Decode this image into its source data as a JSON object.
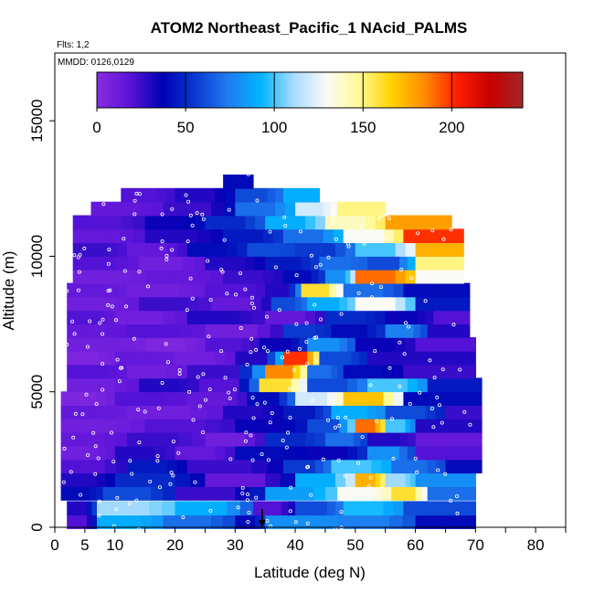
{
  "chart_data": {
    "type": "heatmap",
    "title": "ATOM2 Northeast_Pacific_1 NAcid_PALMS",
    "subtitle_flights": "Flts: 1,2",
    "subtitle_dates": "MMDD: 0126,0129",
    "xlabel": "Latitude (deg N)",
    "ylabel": "Altitude (m)",
    "xlim": [
      0,
      85
    ],
    "ylim": [
      0,
      17500
    ],
    "x_tick_labels": [
      "0",
      "5",
      "10",
      "20",
      "30",
      "40",
      "50",
      "60",
      "70",
      "80"
    ],
    "x_tick_values": [
      0,
      5,
      10,
      20,
      30,
      40,
      50,
      60,
      70,
      80
    ],
    "x_minor_ticks": [
      15,
      25,
      35,
      45,
      55,
      65,
      75,
      85
    ],
    "y_tick_labels": [
      "0",
      "5000",
      "10000",
      "15000"
    ],
    "y_tick_values": [
      0,
      5000,
      10000,
      15000
    ],
    "colorbar": {
      "min": 0,
      "max": 240,
      "tick_labels": [
        "0",
        "50",
        "100",
        "150",
        "200"
      ],
      "tick_values": [
        0,
        50,
        100,
        150,
        200
      ],
      "colors": [
        "#8a2be2",
        "#5a14d8",
        "#0000b4",
        "#0a3ad0",
        "#1e7cf0",
        "#00b4ff",
        "#a8dcff",
        "#fafafa",
        "#fffa96",
        "#ffd200",
        "#ff8c00",
        "#ff1e00",
        "#c80000",
        "#a02828"
      ]
    },
    "altitude_bands": [
      {
        "alt": 200,
        "lat": [
          2,
          70
        ],
        "segments": [
          [
            2,
            7,
            20
          ],
          [
            7,
            18,
            90
          ],
          [
            18,
            30,
            70
          ],
          [
            30,
            35,
            40
          ],
          [
            35,
            47,
            80
          ],
          [
            47,
            60,
            75
          ],
          [
            60,
            70,
            40
          ]
        ]
      },
      {
        "alt": 700,
        "lat": [
          2,
          70
        ],
        "segments": [
          [
            2,
            7,
            30
          ],
          [
            7,
            20,
            110
          ],
          [
            20,
            33,
            90
          ],
          [
            33,
            40,
            20
          ],
          [
            40,
            48,
            60
          ],
          [
            48,
            58,
            95
          ],
          [
            58,
            70,
            60
          ]
        ]
      },
      {
        "alt": 1250,
        "lat": [
          1,
          70
        ],
        "segments": [
          [
            1,
            8,
            40
          ],
          [
            8,
            20,
            60
          ],
          [
            20,
            35,
            25
          ],
          [
            35,
            47,
            85
          ],
          [
            47,
            56,
            130
          ],
          [
            56,
            62,
            160
          ],
          [
            62,
            70,
            70
          ]
        ]
      },
      {
        "alt": 1750,
        "lat": [
          1,
          70
        ],
        "segments": [
          [
            1,
            10,
            30
          ],
          [
            10,
            25,
            50
          ],
          [
            25,
            40,
            15
          ],
          [
            40,
            50,
            90
          ],
          [
            50,
            55,
            175
          ],
          [
            55,
            60,
            110
          ],
          [
            60,
            70,
            80
          ]
        ]
      },
      {
        "alt": 2250,
        "lat": [
          1,
          71
        ],
        "segments": [
          [
            1,
            12,
            20
          ],
          [
            12,
            22,
            45
          ],
          [
            22,
            38,
            25
          ],
          [
            38,
            46,
            55
          ],
          [
            46,
            56,
            100
          ],
          [
            56,
            65,
            70
          ],
          [
            65,
            71,
            40
          ]
        ]
      },
      {
        "alt": 2750,
        "lat": [
          1,
          71
        ],
        "segments": [
          [
            1,
            10,
            10
          ],
          [
            10,
            20,
            30
          ],
          [
            20,
            30,
            15
          ],
          [
            30,
            42,
            40
          ],
          [
            42,
            52,
            35
          ],
          [
            52,
            60,
            80
          ],
          [
            60,
            71,
            20
          ]
        ]
      },
      {
        "alt": 3250,
        "lat": [
          1,
          71
        ],
        "segments": [
          [
            1,
            12,
            15
          ],
          [
            12,
            25,
            25
          ],
          [
            25,
            35,
            10
          ],
          [
            35,
            45,
            50
          ],
          [
            45,
            52,
            70
          ],
          [
            52,
            60,
            30
          ],
          [
            60,
            71,
            15
          ]
        ]
      },
      {
        "alt": 3750,
        "lat": [
          1,
          71
        ],
        "segments": [
          [
            1,
            15,
            10
          ],
          [
            15,
            30,
            20
          ],
          [
            30,
            42,
            35
          ],
          [
            42,
            50,
            60
          ],
          [
            50,
            55,
            190
          ],
          [
            55,
            60,
            100
          ],
          [
            60,
            71,
            30
          ]
        ]
      },
      {
        "alt": 4250,
        "lat": [
          1,
          71
        ],
        "segments": [
          [
            1,
            12,
            15
          ],
          [
            12,
            28,
            10
          ],
          [
            28,
            38,
            30
          ],
          [
            38,
            46,
            45
          ],
          [
            46,
            55,
            90
          ],
          [
            55,
            65,
            60
          ],
          [
            65,
            71,
            25
          ]
        ]
      },
      {
        "alt": 4750,
        "lat": [
          1,
          71
        ],
        "segments": [
          [
            1,
            10,
            5
          ],
          [
            10,
            22,
            20
          ],
          [
            22,
            32,
            15
          ],
          [
            32,
            40,
            40
          ],
          [
            40,
            48,
            120
          ],
          [
            48,
            58,
            170
          ],
          [
            58,
            71,
            40
          ]
        ]
      },
      {
        "alt": 5250,
        "lat": [
          2,
          71
        ],
        "segments": [
          [
            2,
            14,
            10
          ],
          [
            14,
            24,
            30
          ],
          [
            24,
            34,
            20
          ],
          [
            34,
            42,
            160
          ],
          [
            42,
            52,
            60
          ],
          [
            52,
            62,
            100
          ],
          [
            62,
            71,
            45
          ]
        ]
      },
      {
        "alt": 5750,
        "lat": [
          2,
          70
        ],
        "segments": [
          [
            2,
            12,
            20
          ],
          [
            12,
            22,
            10
          ],
          [
            22,
            35,
            25
          ],
          [
            35,
            42,
            185
          ],
          [
            42,
            48,
            70
          ],
          [
            48,
            58,
            40
          ],
          [
            58,
            70,
            25
          ]
        ]
      },
      {
        "alt": 6250,
        "lat": [
          2,
          70
        ],
        "segments": [
          [
            2,
            10,
            5
          ],
          [
            10,
            20,
            15
          ],
          [
            20,
            30,
            10
          ],
          [
            30,
            38,
            30
          ],
          [
            38,
            44,
            200
          ],
          [
            44,
            52,
            60
          ],
          [
            52,
            70,
            30
          ]
        ]
      },
      {
        "alt": 6750,
        "lat": [
          2,
          70
        ],
        "segments": [
          [
            2,
            15,
            10
          ],
          [
            15,
            25,
            5
          ],
          [
            25,
            34,
            20
          ],
          [
            34,
            42,
            35
          ],
          [
            42,
            50,
            80
          ],
          [
            50,
            60,
            35
          ],
          [
            60,
            70,
            20
          ]
        ]
      },
      {
        "alt": 7250,
        "lat": [
          2,
          69
        ],
        "segments": [
          [
            2,
            12,
            15
          ],
          [
            12,
            25,
            20
          ],
          [
            25,
            38,
            10
          ],
          [
            38,
            46,
            55
          ],
          [
            46,
            55,
            40
          ],
          [
            55,
            62,
            75
          ],
          [
            62,
            69,
            30
          ]
        ]
      },
      {
        "alt": 7750,
        "lat": [
          2,
          69
        ],
        "segments": [
          [
            2,
            10,
            20
          ],
          [
            10,
            22,
            10
          ],
          [
            22,
            35,
            30
          ],
          [
            35,
            45,
            15
          ],
          [
            45,
            55,
            50
          ],
          [
            55,
            63,
            35
          ],
          [
            63,
            69,
            20
          ]
        ]
      },
      {
        "alt": 8250,
        "lat": [
          2,
          69
        ],
        "segments": [
          [
            2,
            14,
            10
          ],
          [
            14,
            26,
            25
          ],
          [
            26,
            36,
            15
          ],
          [
            36,
            42,
            60
          ],
          [
            42,
            50,
            90
          ],
          [
            50,
            60,
            130
          ],
          [
            60,
            69,
            45
          ]
        ]
      },
      {
        "alt": 8750,
        "lat": [
          2,
          69
        ],
        "segments": [
          [
            2,
            12,
            15
          ],
          [
            12,
            25,
            10
          ],
          [
            25,
            35,
            20
          ],
          [
            35,
            41,
            30
          ],
          [
            41,
            48,
            160
          ],
          [
            48,
            58,
            70
          ],
          [
            58,
            69,
            40
          ]
        ]
      },
      {
        "alt": 9250,
        "lat": [
          3,
          68
        ],
        "segments": [
          [
            3,
            15,
            10
          ],
          [
            15,
            28,
            15
          ],
          [
            28,
            38,
            25
          ],
          [
            38,
            45,
            40
          ],
          [
            45,
            50,
            80
          ],
          [
            50,
            60,
            190
          ],
          [
            60,
            68,
            130
          ]
        ]
      },
      {
        "alt": 9750,
        "lat": [
          3,
          68
        ],
        "segments": [
          [
            3,
            14,
            20
          ],
          [
            14,
            25,
            10
          ],
          [
            25,
            35,
            30
          ],
          [
            35,
            44,
            45
          ],
          [
            44,
            52,
            70
          ],
          [
            52,
            60,
            60
          ],
          [
            60,
            68,
            150
          ]
        ]
      },
      {
        "alt": 10250,
        "lat": [
          3,
          68
        ],
        "segments": [
          [
            3,
            12,
            25
          ],
          [
            12,
            22,
            15
          ],
          [
            22,
            32,
            40
          ],
          [
            32,
            40,
            60
          ],
          [
            40,
            50,
            55
          ],
          [
            50,
            60,
            100
          ],
          [
            60,
            68,
            175
          ]
        ]
      },
      {
        "alt": 10750,
        "lat": [
          3,
          68
        ],
        "segments": [
          [
            3,
            15,
            15
          ],
          [
            15,
            28,
            30
          ],
          [
            28,
            38,
            45
          ],
          [
            38,
            48,
            70
          ],
          [
            48,
            58,
            130
          ],
          [
            58,
            68,
            200
          ]
        ]
      },
      {
        "alt": 11250,
        "lat": [
          3,
          66
        ],
        "segments": [
          [
            3,
            15,
            20
          ],
          [
            15,
            25,
            35
          ],
          [
            25,
            35,
            50
          ],
          [
            35,
            45,
            90
          ],
          [
            45,
            55,
            140
          ],
          [
            55,
            66,
            180
          ]
        ]
      },
      {
        "alt": 11750,
        "lat": [
          6,
          55
        ],
        "segments": [
          [
            6,
            18,
            15
          ],
          [
            18,
            30,
            25
          ],
          [
            30,
            40,
            70
          ],
          [
            40,
            47,
            120
          ],
          [
            47,
            55,
            150
          ]
        ]
      },
      {
        "alt": 12250,
        "lat": [
          11,
          44
        ],
        "segments": [
          [
            11,
            20,
            20
          ],
          [
            20,
            30,
            30
          ],
          [
            30,
            38,
            60
          ],
          [
            38,
            44,
            90
          ]
        ]
      },
      {
        "alt": 12750,
        "lat": [
          28,
          33
        ],
        "segments": [
          [
            28,
            33,
            40
          ]
        ]
      }
    ],
    "flight_tracks_visible": true,
    "marker": {
      "lat": 34.5,
      "alt": 0,
      "label": ""
    }
  }
}
